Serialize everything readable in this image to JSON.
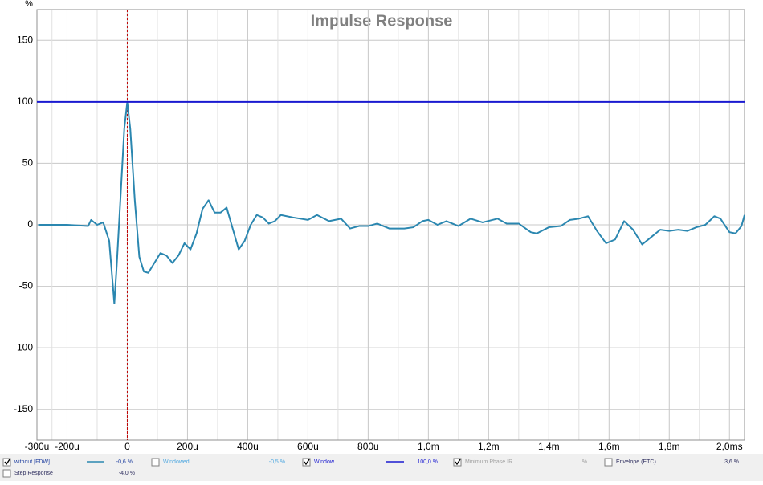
{
  "chart_data": {
    "type": "line",
    "title": "Impulse Response",
    "y_label": "%",
    "xlim": [
      -0.3,
      2.05
    ],
    "ylim": [
      -175,
      175
    ],
    "xticks": [
      {
        "value": -0.3,
        "label": "-300u"
      },
      {
        "value": -0.2,
        "label": "-200u"
      },
      0,
      {
        "value": 0.2,
        "label": "200u"
      },
      {
        "value": 0.4,
        "label": "400u"
      },
      {
        "value": 0.6,
        "label": "600u"
      },
      {
        "value": 0.8,
        "label": "800u"
      },
      {
        "value": 1.0,
        "label": "1,0m"
      },
      {
        "value": 1.2,
        "label": "1,2m"
      },
      {
        "value": 1.4,
        "label": "1,4m"
      },
      {
        "value": 1.6,
        "label": "1,6m"
      },
      {
        "value": 1.8,
        "label": "1,8m"
      },
      {
        "value": 2.0,
        "label": "2,0ms"
      }
    ],
    "yticks": [
      -150,
      -100,
      -50,
      0,
      50,
      100,
      150
    ],
    "grid": true,
    "marker_x": 0,
    "marker_color": "#c00000",
    "series": [
      {
        "color": "#2b87b0",
        "x": [
          -0.296,
          -0.2,
          -0.13,
          -0.12,
          -0.1,
          -0.08,
          -0.06,
          -0.043,
          -0.035,
          -0.02,
          -0.01,
          0,
          0.01,
          0.025,
          0.04,
          0.055,
          0.07,
          0.09,
          0.11,
          0.13,
          0.15,
          0.17,
          0.19,
          0.21,
          0.23,
          0.25,
          0.27,
          0.29,
          0.31,
          0.33,
          0.35,
          0.37,
          0.39,
          0.41,
          0.43,
          0.45,
          0.47,
          0.49,
          0.51,
          0.55,
          0.6,
          0.63,
          0.67,
          0.71,
          0.74,
          0.77,
          0.8,
          0.83,
          0.87,
          0.92,
          0.95,
          0.98,
          1.0,
          1.03,
          1.06,
          1.1,
          1.14,
          1.18,
          1.23,
          1.26,
          1.3,
          1.34,
          1.36,
          1.4,
          1.44,
          1.47,
          1.5,
          1.53,
          1.56,
          1.59,
          1.62,
          1.65,
          1.68,
          1.71,
          1.74,
          1.77,
          1.8,
          1.83,
          1.86,
          1.89,
          1.92,
          1.95,
          1.97,
          2.0,
          2.02,
          2.04,
          2.05
        ],
        "values": [
          0,
          0,
          -1,
          4,
          0,
          2,
          -13,
          -64,
          -33,
          33,
          78,
          100,
          78,
          20,
          -26,
          -38,
          -39,
          -31,
          -23,
          -25,
          -31,
          -25,
          -15,
          -20,
          -7,
          13,
          20,
          10,
          10,
          14,
          -3,
          -20,
          -13,
          0,
          8,
          6,
          1,
          3,
          8,
          6,
          4,
          8,
          3,
          5,
          -3,
          -1,
          -1,
          1,
          -3,
          -3,
          -2,
          3,
          4,
          0,
          3,
          -1,
          5,
          2,
          5,
          1,
          1,
          -6,
          -7,
          -2,
          -1,
          4,
          5,
          7,
          -5,
          -15,
          -12,
          3,
          -4,
          -16,
          -10,
          -4,
          -5,
          -4,
          -5,
          -2,
          0,
          7,
          5,
          -6,
          -7,
          -1,
          8
        ]
      },
      {
        "color": "#1a1ad0",
        "x": [
          -0.3,
          2.05
        ],
        "values": [
          100,
          100
        ]
      }
    ]
  },
  "legend_panel": [
    {
      "name": "without [FDW]",
      "reading": "-0,6 %",
      "checked": true,
      "color": "#2040a0",
      "swatch": "#2b87b0"
    },
    {
      "name": "Windowed",
      "reading": "-0,5 %",
      "checked": false,
      "color": "#50a8e0"
    },
    {
      "name": "Window",
      "reading": "100,0 %",
      "checked": true,
      "color": "#1a1ad0",
      "swatch": "#1a1ad0"
    },
    {
      "name": "Minimum Phase IR",
      "reading": "%",
      "checked": true,
      "color": "#a0a0a0"
    },
    {
      "name": "Envelope (ETC)",
      "reading": "3,6 %",
      "checked": false,
      "color": "#303060"
    },
    {
      "name": "Step Response",
      "reading": "-4,0 %",
      "checked": false,
      "color": "#303060"
    }
  ]
}
